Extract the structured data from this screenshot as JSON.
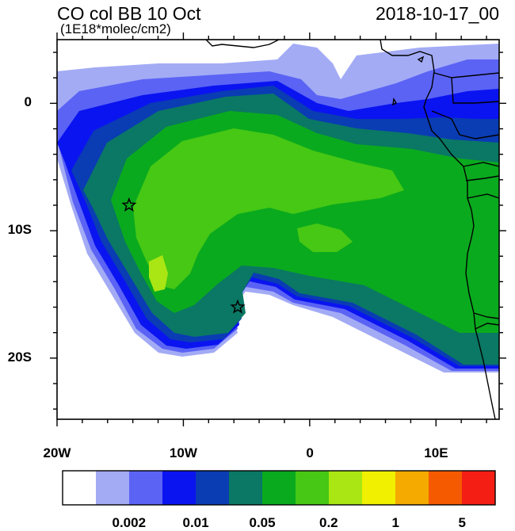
{
  "title": {
    "left": "CO col BB 10 Oct",
    "units": "(1E18*molec/cm2)",
    "right": "2018-10-17_00"
  },
  "axes": {
    "y_ticks": [
      {
        "value": 0,
        "label": "0"
      },
      {
        "value": -10,
        "label": "10S"
      },
      {
        "value": -20,
        "label": "20S"
      }
    ],
    "x_ticks": [
      {
        "value": -20,
        "label": "20W"
      },
      {
        "value": -10,
        "label": "10W"
      },
      {
        "value": 0,
        "label": "0"
      },
      {
        "value": 10,
        "label": "10E"
      }
    ],
    "lon_range": [
      -20,
      15
    ],
    "lat_range": [
      -24.8,
      5
    ]
  },
  "markers": [
    {
      "name": "star-marker-west",
      "lon": -14.3,
      "lat": -8.0
    },
    {
      "name": "star-marker-south",
      "lon": -5.7,
      "lat": -16.0
    }
  ],
  "colorbar": {
    "colors": [
      "#ffffff",
      "#a3abf5",
      "#5b63f5",
      "#0a14f0",
      "#0a3cb4",
      "#0a7864",
      "#0aaa1e",
      "#46c814",
      "#aae614",
      "#f0f000",
      "#f5aa00",
      "#f55a00",
      "#f51e14"
    ],
    "labels": [
      {
        "text": "0.002",
        "boundary": 2
      },
      {
        "text": "0.01",
        "boundary": 4
      },
      {
        "text": "0.05",
        "boundary": 6
      },
      {
        "text": "0.2",
        "boundary": 8
      },
      {
        "text": "1",
        "boundary": 10
      },
      {
        "text": "5",
        "boundary": 12
      }
    ]
  },
  "plume_colors": {
    "l1": "#a3abf5",
    "l2": "#5b63f5",
    "l3": "#0a14f0",
    "l4": "#0a3cb4",
    "l5": "#0a7864",
    "l6": "#0aaa1e",
    "l7": "#46c814",
    "l8": "#aae614"
  }
}
